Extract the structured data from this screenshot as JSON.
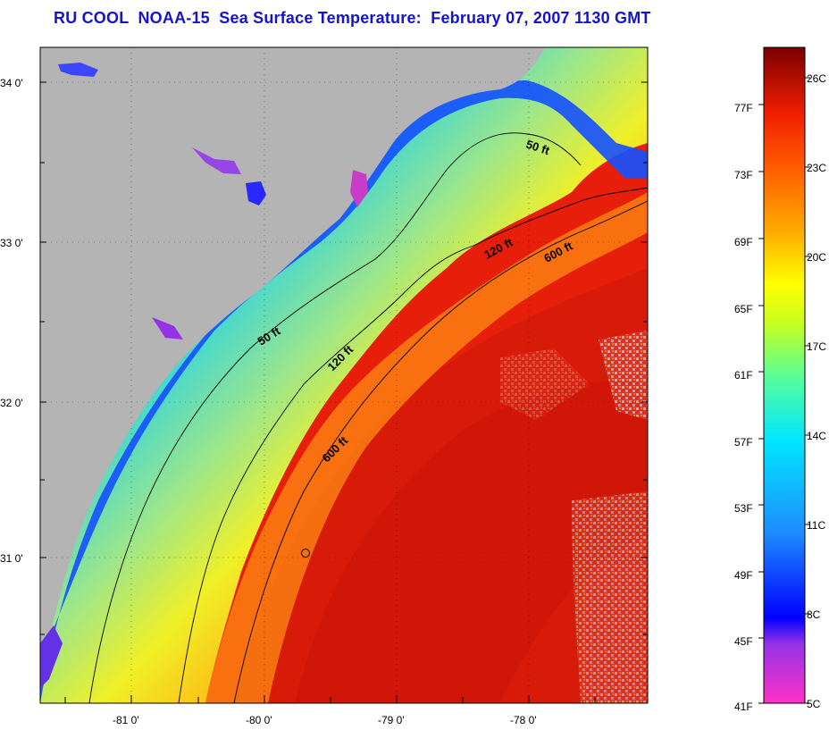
{
  "title": "RU COOL  NOAA-15  Sea Surface Temperature:  February 07, 2007 1130 GMT",
  "map": {
    "lat_ticks": [
      "34 0'",
      "33 0'",
      "32 0'",
      "31 0'"
    ],
    "lon_ticks": [
      "-81 0'",
      "-80 0'",
      "-79 0'",
      "-78 0'"
    ],
    "contours": {
      "c50": "50 ft",
      "c120": "120 ft",
      "c600": "600 ft"
    },
    "colors": {
      "land": "#b4b4b4",
      "warm": "#e61e0a",
      "coast_blue": "#1e5aff"
    }
  },
  "colorbar": {
    "fahrenheit": [
      "77F",
      "73F",
      "69F",
      "65F",
      "61F",
      "57F",
      "53F",
      "49F",
      "45F",
      "41F"
    ],
    "celsius": [
      "26C",
      "23C",
      "20C",
      "17C",
      "14C",
      "11C",
      "8C",
      "5C"
    ]
  }
}
